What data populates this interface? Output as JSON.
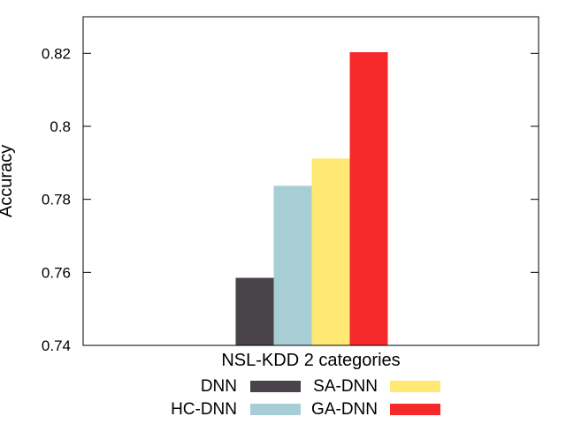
{
  "chart_data": {
    "type": "bar",
    "categories": [
      "NSL-KDD 2 categories"
    ],
    "series": [
      {
        "name": "DNN",
        "values": [
          0.7585
        ],
        "color": "#48444a"
      },
      {
        "name": "HC-DNN",
        "values": [
          0.7837
        ],
        "color": "#a7ced4"
      },
      {
        "name": "SA-DNN",
        "values": [
          0.7912
        ],
        "color": "#ffe873"
      },
      {
        "name": "GA-DNN",
        "values": [
          0.8203
        ],
        "color": "#f5282a"
      }
    ],
    "title": "",
    "xlabel": "",
    "ylabel": "Accuracy",
    "ylim": [
      0.74,
      0.83
    ],
    "yticks": [
      {
        "value": 0.74,
        "label": "0.74"
      },
      {
        "value": 0.76,
        "label": "0.76"
      },
      {
        "value": 0.78,
        "label": "0.78"
      },
      {
        "value": 0.8,
        "label": "0.8"
      },
      {
        "value": 0.82,
        "label": "0.82"
      }
    ],
    "grid": false,
    "legend": "bottom"
  }
}
